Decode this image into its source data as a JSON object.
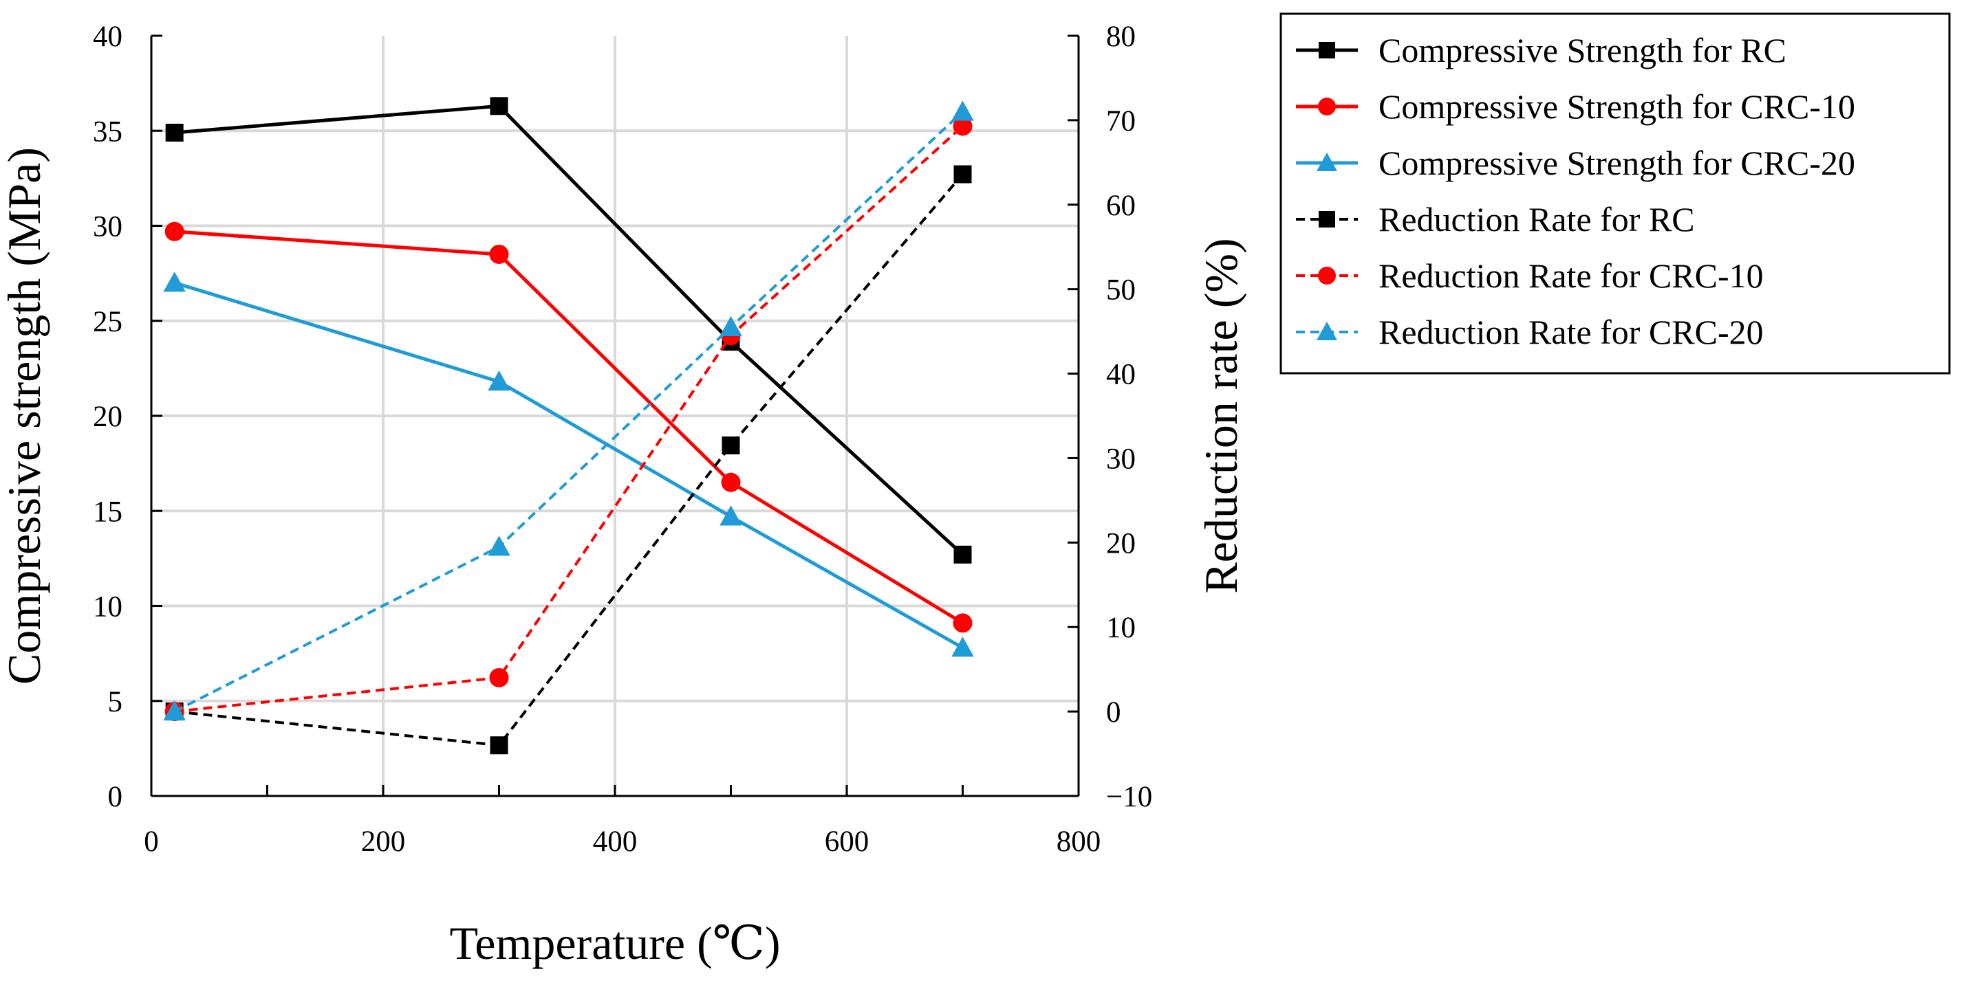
{
  "chart_data": {
    "type": "line",
    "xlabel": "Temperature (℃)",
    "ylabel": "Compressive strength (MPa)",
    "y2label": "Reduction rate (%)",
    "xlim": [
      0,
      800
    ],
    "ylim": [
      0,
      40
    ],
    "y2lim": [
      -10,
      80
    ],
    "x_ticks": [
      0,
      200,
      400,
      600,
      800
    ],
    "y_ticks": [
      0,
      5,
      10,
      15,
      20,
      25,
      30,
      35,
      40
    ],
    "y2_ticks": [
      -10,
      0,
      10,
      20,
      30,
      40,
      50,
      60,
      70,
      80
    ],
    "grid": true,
    "legend_position": "outside-right-top",
    "series": [
      {
        "name": "Compressive Strength for RC",
        "axis": "left",
        "style": "solid",
        "marker": "square",
        "color": "#000000",
        "x": [
          20,
          300,
          500,
          700
        ],
        "y": [
          34.9,
          36.3,
          23.9,
          12.7
        ]
      },
      {
        "name": "Compressive Strength for CRC-10",
        "axis": "left",
        "style": "solid",
        "marker": "circle",
        "color": "#ff0000",
        "x": [
          20,
          300,
          500,
          700
        ],
        "y": [
          29.7,
          28.5,
          16.5,
          9.1
        ]
      },
      {
        "name": "Compressive Strength for CRC-20",
        "axis": "left",
        "style": "solid",
        "marker": "triangle",
        "color": "#1f9bd7",
        "x": [
          20,
          300,
          500,
          700
        ],
        "y": [
          27.0,
          21.8,
          14.7,
          7.8
        ]
      },
      {
        "name": "Reduction Rate for RC",
        "axis": "right",
        "style": "dashed",
        "marker": "square",
        "color": "#000000",
        "x": [
          20,
          300,
          500,
          700
        ],
        "y": [
          0,
          -4,
          31.5,
          63.6
        ]
      },
      {
        "name": "Reduction Rate for CRC-10",
        "axis": "right",
        "style": "dashed",
        "marker": "circle",
        "color": "#ff0000",
        "x": [
          20,
          300,
          500,
          700
        ],
        "y": [
          0,
          4,
          44.5,
          69.3
        ]
      },
      {
        "name": "Reduction Rate for CRC-20",
        "axis": "right",
        "style": "dashed",
        "marker": "triangle",
        "color": "#1f9bd7",
        "x": [
          20,
          300,
          500,
          700
        ],
        "y": [
          0,
          19.5,
          45.5,
          71.0
        ]
      }
    ]
  }
}
